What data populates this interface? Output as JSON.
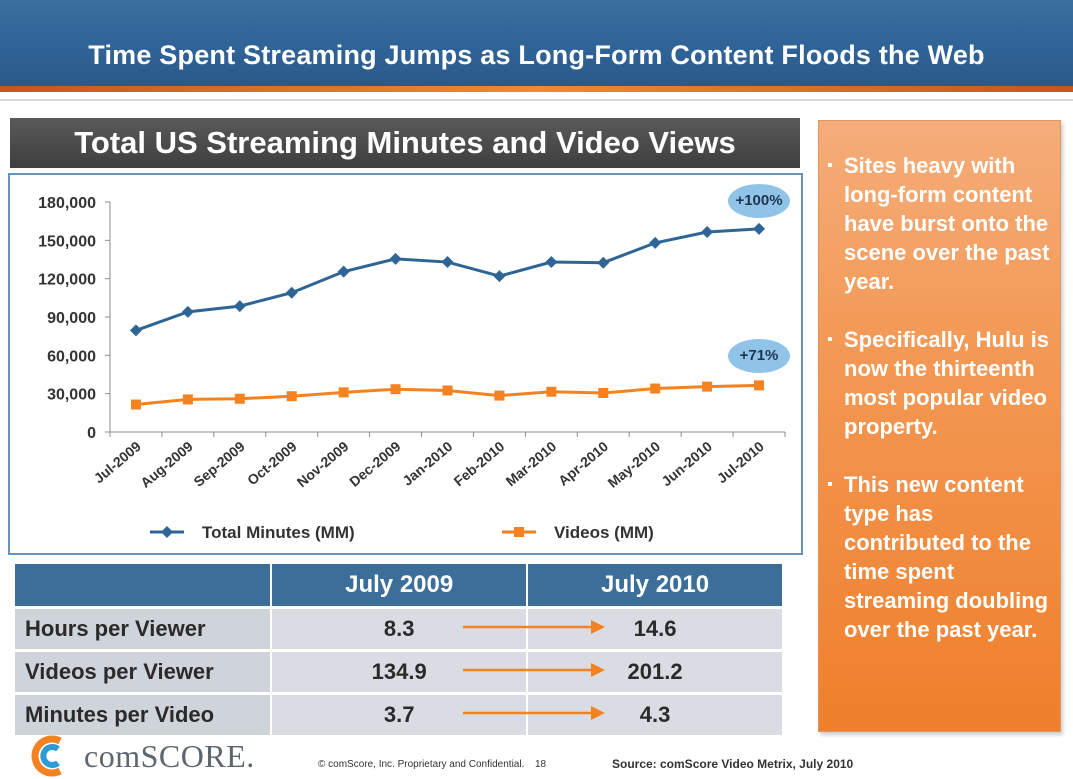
{
  "header": {
    "title": "Time Spent Streaming Jumps as Long-Form Content Floods the Web"
  },
  "chart_data": {
    "type": "line",
    "title": "Total US Streaming Minutes and Video Views",
    "categories": [
      "Jul-2009",
      "Aug-2009",
      "Sep-2009",
      "Oct-2009",
      "Nov-2009",
      "Dec-2009",
      "Jan-2010",
      "Feb-2010",
      "Mar-2010",
      "Apr-2010",
      "May-2010",
      "Jun-2010",
      "Jul-2010"
    ],
    "series": [
      {
        "name": "Total Minutes (MM)",
        "color": "#2e6595",
        "marker": "diamond",
        "values": [
          79500,
          94000,
          98500,
          109000,
          125500,
          135500,
          133000,
          122000,
          133000,
          132500,
          148000,
          156500,
          159000
        ]
      },
      {
        "name": "Videos (MM)",
        "color": "#f58220",
        "marker": "square",
        "values": [
          21500,
          25500,
          26000,
          28000,
          31000,
          33500,
          32500,
          28500,
          31500,
          30500,
          34000,
          35500,
          36500
        ]
      }
    ],
    "yticks": [
      "0",
      "30,000",
      "60,000",
      "90,000",
      "120,000",
      "150,000",
      "180,000"
    ],
    "ylim": [
      0,
      180000
    ],
    "legend_position": "bottom",
    "grid": false,
    "annotations": [
      {
        "text": "+100%",
        "series": "Total Minutes (MM)"
      },
      {
        "text": "+71%",
        "series": "Videos (MM)"
      }
    ]
  },
  "stats_table": {
    "columns": [
      "July 2009",
      "July 2010"
    ],
    "rows": [
      {
        "label": "Hours per Viewer",
        "v2009": "8.3",
        "v2010": "14.6"
      },
      {
        "label": "Videos per Viewer",
        "v2009": "134.9",
        "v2010": "201.2"
      },
      {
        "label": "Minutes per Video",
        "v2009": "3.7",
        "v2010": "4.3"
      }
    ]
  },
  "side_panel": {
    "bullets": [
      "Sites heavy with long-form content have burst onto the scene over the past year.",
      "Specifically, Hulu is now the thirteenth most popular video property.",
      "This new content type has contributed to the time spent streaming doubling over the past year."
    ]
  },
  "footer": {
    "brand": "comSCORE.",
    "copyright": "© comScore, Inc.  Proprietary and Confidential.",
    "page_number": "18",
    "source": "Source:  comScore Video Metrix, July 2010"
  },
  "colors": {
    "title_bar": "#2f6296",
    "accent_orange": "#f58220",
    "navy_series": "#2e6595",
    "badge_blue": "#8fc3e8"
  }
}
